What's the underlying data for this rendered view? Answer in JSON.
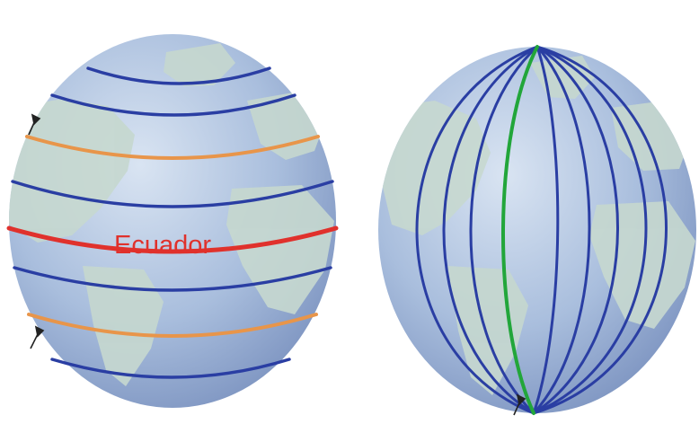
{
  "left_globe": {
    "equator_label": "Ecuador",
    "colors": {
      "ocean": "#a9bedd",
      "land": "#c6d8cf",
      "parallel": "#2a3ea3",
      "tropic": "#e8954a",
      "equator": "#e0312c",
      "label": "#e0312c"
    }
  },
  "right_globe": {
    "colors": {
      "ocean": "#a9bedd",
      "land": "#c6d8cf",
      "meridian": "#2a3ea3",
      "prime_meridian": "#22a63a"
    }
  }
}
